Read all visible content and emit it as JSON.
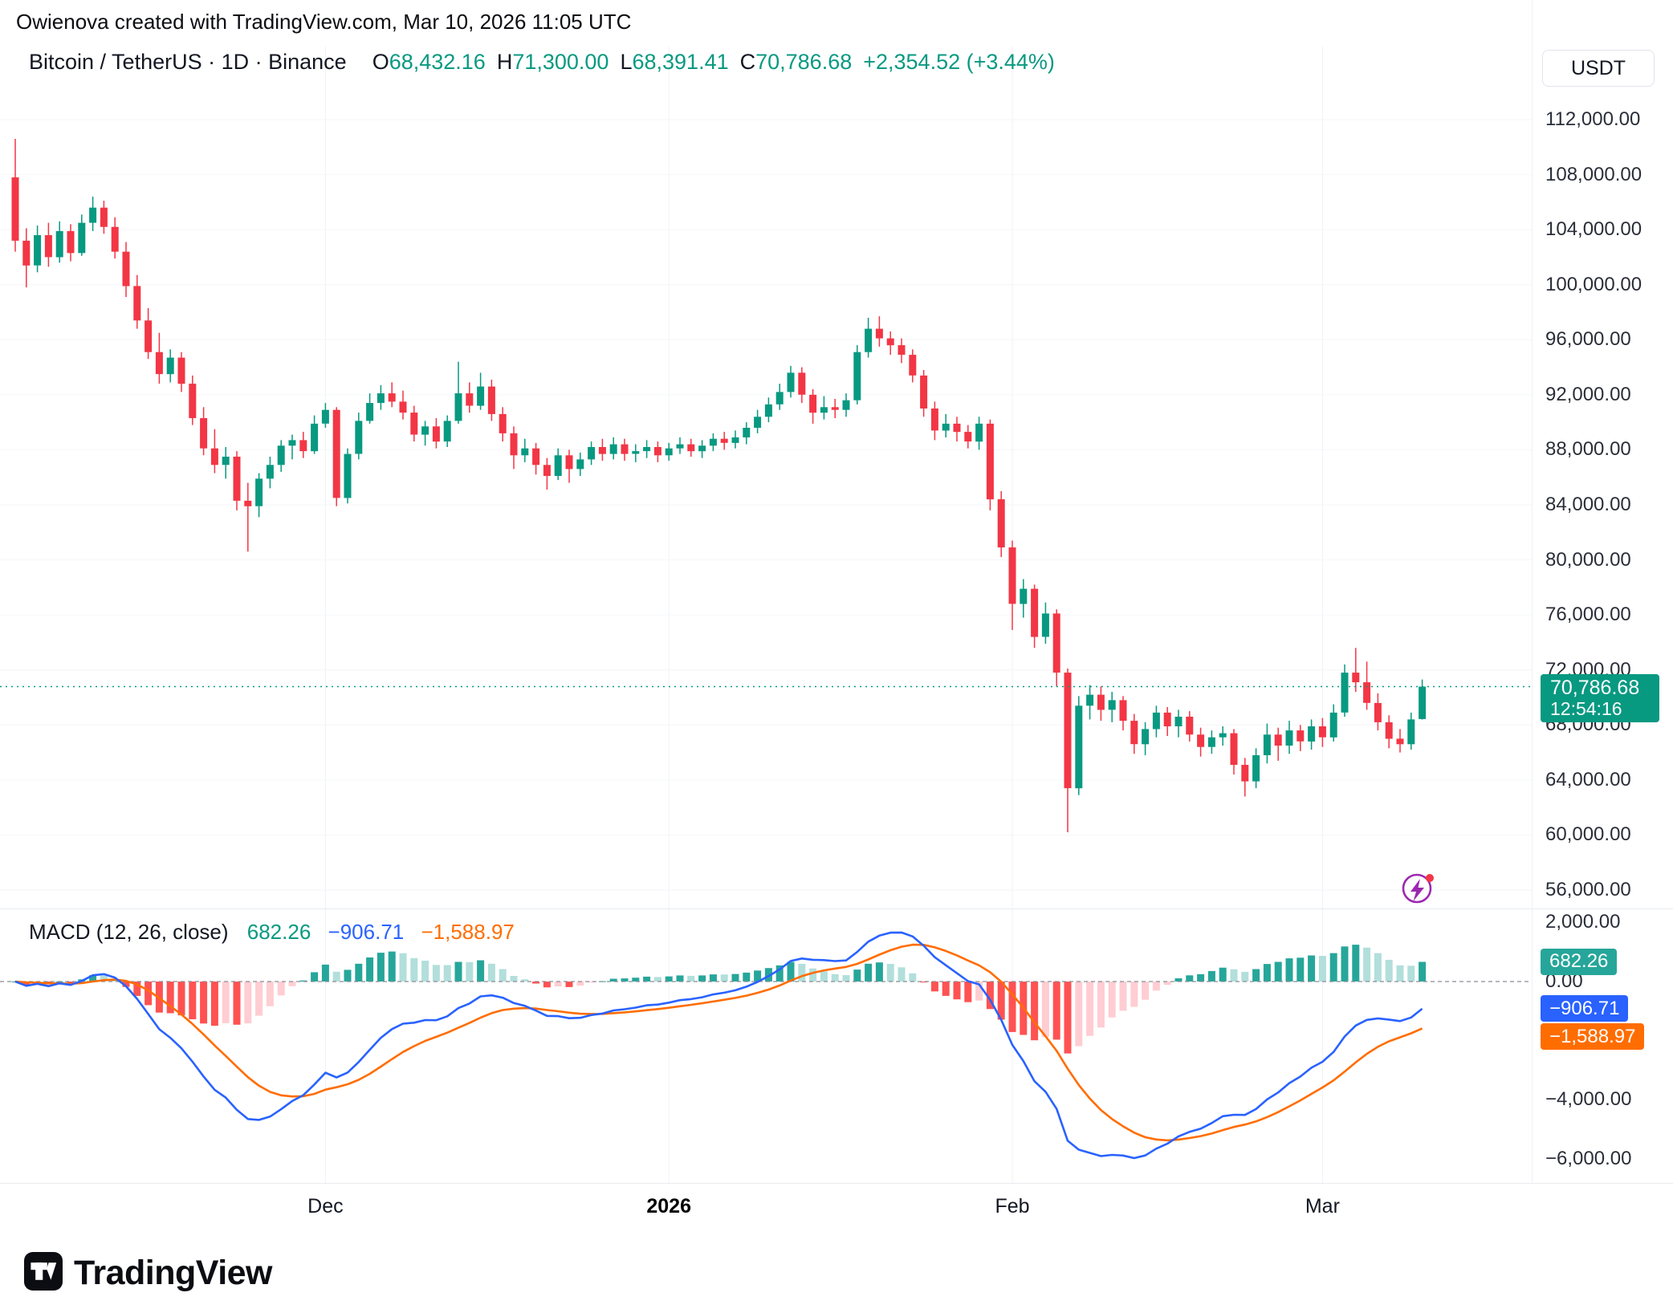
{
  "attribution": "Owienova created with TradingView.com, Mar 10, 2026 11:05 UTC",
  "symbol_bar": {
    "title": "Bitcoin / TetherUS · 1D · Binance",
    "open_label": "O",
    "open": "68,432.16",
    "high_label": "H",
    "high": "71,300.00",
    "low_label": "L",
    "low": "68,391.41",
    "close_label": "C",
    "close": "70,786.68",
    "change": "+2,354.52 (+3.44%)"
  },
  "price_axis": {
    "currency": "USDT",
    "ticks": [
      "112,000.00",
      "108,000.00",
      "104,000.00",
      "100,000.00",
      "96,000.00",
      "92,000.00",
      "88,000.00",
      "84,000.00",
      "80,000.00",
      "76,000.00",
      "72,000.00",
      "68,000.00",
      "64,000.00",
      "60,000.00",
      "56,000.00"
    ],
    "badge": {
      "price": "70,786.68",
      "countdown": "12:54:16"
    }
  },
  "macd": {
    "title": "MACD (12, 26, close)",
    "histogram_value": "682.26",
    "macd_value": "−906.71",
    "signal_value": "−1,588.97",
    "ticks": [
      "2,000.00",
      "0.00",
      "−4,000.00",
      "−6,000.00"
    ]
  },
  "time_axis": {
    "labels": [
      {
        "text": "Dec",
        "candle_index": 28,
        "bold": false
      },
      {
        "text": "2026",
        "candle_index": 59,
        "bold": true
      },
      {
        "text": "Feb",
        "candle_index": 90,
        "bold": false
      },
      {
        "text": "Mar",
        "candle_index": 118,
        "bold": false
      }
    ]
  },
  "footer": {
    "brand": "TradingView"
  },
  "colors": {
    "up": "#089981",
    "down": "#F23645",
    "macd_line": "#2962FF",
    "signal_line": "#FF6D00",
    "hist_grow_above": "#26A69A",
    "hist_fall_above": "#B2DFDB",
    "hist_fall_below": "#FF5252",
    "hist_grow_below": "#FFCDD2",
    "price_badge": "#089981",
    "hist_badge": "#26A69A",
    "macd_badge": "#2962FF",
    "signal_badge": "#FF6D00",
    "flash_icon": "#9C27B0",
    "dot": "#F23645"
  },
  "chart_data": {
    "type": "candlestick",
    "symbol": "Bitcoin / TetherUS",
    "interval": "1D",
    "exchange": "Binance",
    "price_axis_range": [
      56000,
      112000
    ],
    "macd_axis_range": [
      -6000,
      2000
    ],
    "last_bar": {
      "open": 68432.16,
      "high": 71300.0,
      "low": 68391.41,
      "close": 70786.68,
      "change": 2354.52,
      "change_pct": 3.44
    },
    "indicator": {
      "name": "MACD",
      "fast": 12,
      "slow": 26,
      "source": "close",
      "last_histogram": 682.26,
      "last_macd": -906.71,
      "last_signal": -1588.97
    },
    "candles": [
      [
        "2025-11-03",
        107800,
        110600,
        102400,
        103200
      ],
      [
        "2025-11-04",
        103200,
        104100,
        99800,
        101400
      ],
      [
        "2025-11-05",
        101400,
        104300,
        100900,
        103600
      ],
      [
        "2025-11-06",
        103600,
        104500,
        101300,
        102000
      ],
      [
        "2025-11-07",
        102000,
        104600,
        101600,
        103900
      ],
      [
        "2025-11-08",
        103900,
        104400,
        101700,
        102300
      ],
      [
        "2025-11-09",
        102300,
        105100,
        102100,
        104500
      ],
      [
        "2025-11-10",
        104500,
        106400,
        103900,
        105600
      ],
      [
        "2025-11-11",
        105600,
        106100,
        103700,
        104200
      ],
      [
        "2025-11-12",
        104200,
        104900,
        101900,
        102400
      ],
      [
        "2025-11-13",
        102400,
        103100,
        99100,
        99900
      ],
      [
        "2025-11-14",
        99900,
        100700,
        96800,
        97400
      ],
      [
        "2025-11-15",
        97400,
        98300,
        94600,
        95100
      ],
      [
        "2025-11-16",
        95100,
        96500,
        92800,
        93500
      ],
      [
        "2025-11-17",
        93500,
        95300,
        92900,
        94700
      ],
      [
        "2025-11-18",
        94700,
        95100,
        92200,
        92800
      ],
      [
        "2025-11-19",
        92800,
        93400,
        89800,
        90300
      ],
      [
        "2025-11-20",
        90300,
        91100,
        87600,
        88100
      ],
      [
        "2025-11-21",
        88100,
        89500,
        86300,
        86900
      ],
      [
        "2025-11-22",
        86900,
        88200,
        85900,
        87500
      ],
      [
        "2025-11-23",
        87500,
        87900,
        83600,
        84300
      ],
      [
        "2025-11-24",
        84300,
        85600,
        80600,
        83900
      ],
      [
        "2025-11-25",
        83900,
        86300,
        83100,
        85900
      ],
      [
        "2025-11-26",
        85900,
        87500,
        85200,
        86900
      ],
      [
        "2025-11-27",
        86900,
        88700,
        86400,
        88300
      ],
      [
        "2025-11-28",
        88300,
        89100,
        87300,
        88700
      ],
      [
        "2025-11-29",
        88700,
        89300,
        87400,
        87900
      ],
      [
        "2025-11-30",
        87900,
        90500,
        87700,
        89900
      ],
      [
        "2025-12-01",
        89900,
        91400,
        89600,
        90900
      ],
      [
        "2025-12-02",
        90900,
        91100,
        83900,
        84500
      ],
      [
        "2025-12-03",
        84500,
        88100,
        84100,
        87700
      ],
      [
        "2025-12-04",
        87700,
        90700,
        87300,
        90100
      ],
      [
        "2025-12-05",
        90100,
        92100,
        89900,
        91400
      ],
      [
        "2025-12-06",
        91400,
        92700,
        90900,
        92100
      ],
      [
        "2025-12-07",
        92100,
        92900,
        91100,
        91500
      ],
      [
        "2025-12-08",
        91500,
        92300,
        90200,
        90700
      ],
      [
        "2025-12-09",
        90700,
        91200,
        88600,
        89100
      ],
      [
        "2025-12-10",
        89100,
        90100,
        88300,
        89700
      ],
      [
        "2025-12-11",
        89700,
        90300,
        88100,
        88600
      ],
      [
        "2025-12-12",
        88600,
        90500,
        88200,
        90100
      ],
      [
        "2025-12-13",
        90100,
        94400,
        89900,
        92100
      ],
      [
        "2025-12-14",
        92100,
        92900,
        90700,
        91200
      ],
      [
        "2025-12-15",
        91200,
        93600,
        90900,
        92600
      ],
      [
        "2025-12-16",
        92600,
        93100,
        90100,
        90600
      ],
      [
        "2025-12-17",
        90600,
        91100,
        88600,
        89200
      ],
      [
        "2025-12-18",
        89200,
        89700,
        86600,
        87600
      ],
      [
        "2025-12-19",
        87600,
        88800,
        87100,
        88100
      ],
      [
        "2025-12-20",
        88100,
        88500,
        86200,
        86900
      ],
      [
        "2025-12-21",
        86900,
        87400,
        85100,
        86100
      ],
      [
        "2025-12-22",
        86100,
        88100,
        85800,
        87600
      ],
      [
        "2025-12-23",
        87600,
        88000,
        85600,
        86600
      ],
      [
        "2025-12-24",
        86600,
        87800,
        86100,
        87300
      ],
      [
        "2025-12-25",
        87300,
        88600,
        86900,
        88200
      ],
      [
        "2025-12-26",
        88200,
        88800,
        87200,
        87700
      ],
      [
        "2025-12-27",
        87700,
        88900,
        87300,
        88400
      ],
      [
        "2025-12-28",
        88400,
        88800,
        87200,
        87700
      ],
      [
        "2025-12-29",
        87700,
        88400,
        87100,
        87900
      ],
      [
        "2025-12-30",
        87900,
        88700,
        87400,
        88200
      ],
      [
        "2025-12-31",
        88200,
        88600,
        87100,
        87600
      ],
      [
        "2026-01-01",
        87600,
        88500,
        87200,
        88100
      ],
      [
        "2026-01-02",
        88100,
        88900,
        87700,
        88400
      ],
      [
        "2026-01-03",
        88400,
        88800,
        87500,
        87900
      ],
      [
        "2026-01-04",
        87900,
        88700,
        87400,
        88300
      ],
      [
        "2026-01-05",
        88300,
        89200,
        87900,
        88800
      ],
      [
        "2026-01-06",
        88800,
        89300,
        88000,
        88500
      ],
      [
        "2026-01-07",
        88500,
        89400,
        88100,
        88900
      ],
      [
        "2026-01-08",
        88900,
        90000,
        88400,
        89600
      ],
      [
        "2026-01-09",
        89600,
        90900,
        89200,
        90400
      ],
      [
        "2026-01-10",
        90400,
        91800,
        90000,
        91300
      ],
      [
        "2026-01-11",
        91300,
        92800,
        90900,
        92200
      ],
      [
        "2026-01-12",
        92200,
        94100,
        91800,
        93600
      ],
      [
        "2026-01-13",
        93600,
        94000,
        91400,
        92000
      ],
      [
        "2026-01-14",
        92000,
        92400,
        89900,
        90700
      ],
      [
        "2026-01-15",
        90700,
        91900,
        90200,
        91100
      ],
      [
        "2026-01-16",
        91100,
        91700,
        90300,
        90900
      ],
      [
        "2026-01-17",
        90900,
        92100,
        90400,
        91600
      ],
      [
        "2026-01-18",
        91600,
        95600,
        91300,
        95100
      ],
      [
        "2026-01-19",
        95100,
        97600,
        94700,
        96800
      ],
      [
        "2026-01-20",
        96800,
        97700,
        95500,
        96100
      ],
      [
        "2026-01-21",
        96100,
        96600,
        94900,
        95600
      ],
      [
        "2026-01-22",
        95600,
        96100,
        94300,
        94900
      ],
      [
        "2026-01-23",
        94900,
        95300,
        92900,
        93400
      ],
      [
        "2026-01-24",
        93400,
        93800,
        90400,
        91000
      ],
      [
        "2026-01-25",
        91000,
        91500,
        88700,
        89400
      ],
      [
        "2026-01-26",
        89400,
        90600,
        88900,
        89900
      ],
      [
        "2026-01-27",
        89900,
        90400,
        88600,
        89300
      ],
      [
        "2026-01-28",
        89300,
        89800,
        88100,
        88600
      ],
      [
        "2026-01-29",
        88600,
        90400,
        88000,
        89900
      ],
      [
        "2026-01-30",
        89900,
        90200,
        83600,
        84400
      ],
      [
        "2026-01-31",
        84400,
        85000,
        80200,
        80900
      ],
      [
        "2026-02-01",
        80900,
        81400,
        74900,
        76800
      ],
      [
        "2026-02-02",
        76800,
        78600,
        75800,
        77900
      ],
      [
        "2026-02-03",
        77900,
        78200,
        73600,
        74400
      ],
      [
        "2026-02-04",
        74400,
        76900,
        73900,
        76100
      ],
      [
        "2026-02-05",
        76100,
        76400,
        70800,
        71800
      ],
      [
        "2026-02-06",
        71800,
        72100,
        60200,
        63400
      ],
      [
        "2026-02-07",
        63400,
        70100,
        62900,
        69400
      ],
      [
        "2026-02-08",
        69400,
        70900,
        68400,
        70200
      ],
      [
        "2026-02-09",
        70200,
        70800,
        68300,
        69100
      ],
      [
        "2026-02-10",
        69100,
        70400,
        68200,
        69800
      ],
      [
        "2026-02-11",
        69800,
        70100,
        67600,
        68300
      ],
      [
        "2026-02-12",
        68300,
        68800,
        65900,
        66600
      ],
      [
        "2026-02-13",
        66600,
        68200,
        65800,
        67700
      ],
      [
        "2026-02-14",
        67700,
        69400,
        67100,
        68900
      ],
      [
        "2026-02-15",
        68900,
        69300,
        67200,
        67900
      ],
      [
        "2026-02-16",
        67900,
        69100,
        67100,
        68600
      ],
      [
        "2026-02-17",
        68600,
        69000,
        66800,
        67300
      ],
      [
        "2026-02-18",
        67300,
        67800,
        65700,
        66400
      ],
      [
        "2026-02-19",
        66400,
        67600,
        65900,
        67100
      ],
      [
        "2026-02-20",
        67100,
        67900,
        66500,
        67400
      ],
      [
        "2026-02-21",
        67400,
        67700,
        64400,
        65100
      ],
      [
        "2026-02-22",
        65100,
        65600,
        62800,
        63900
      ],
      [
        "2026-02-23",
        63900,
        66300,
        63400,
        65800
      ],
      [
        "2026-02-24",
        65800,
        68100,
        65200,
        67300
      ],
      [
        "2026-02-25",
        67300,
        67800,
        65400,
        66500
      ],
      [
        "2026-02-26",
        66500,
        68300,
        65900,
        67600
      ],
      [
        "2026-02-27",
        67600,
        68000,
        66100,
        66800
      ],
      [
        "2026-02-28",
        66800,
        68400,
        66200,
        67900
      ],
      [
        "2026-03-01",
        67900,
        68500,
        66400,
        67100
      ],
      [
        "2026-03-02",
        67100,
        69500,
        66800,
        68900
      ],
      [
        "2026-03-03",
        68900,
        72400,
        68600,
        71800
      ],
      [
        "2026-03-04",
        71800,
        73600,
        70400,
        71100
      ],
      [
        "2026-03-05",
        71100,
        72600,
        69100,
        69600
      ],
      [
        "2026-03-06",
        69600,
        70300,
        67600,
        68200
      ],
      [
        "2026-03-07",
        68200,
        68700,
        66300,
        67000
      ],
      [
        "2026-03-08",
        67000,
        67700,
        66000,
        66600
      ],
      [
        "2026-03-09",
        66600,
        68900,
        66200,
        68400
      ],
      [
        "2026-03-10",
        68432.16,
        71300,
        68391.41,
        70786.68
      ]
    ]
  }
}
